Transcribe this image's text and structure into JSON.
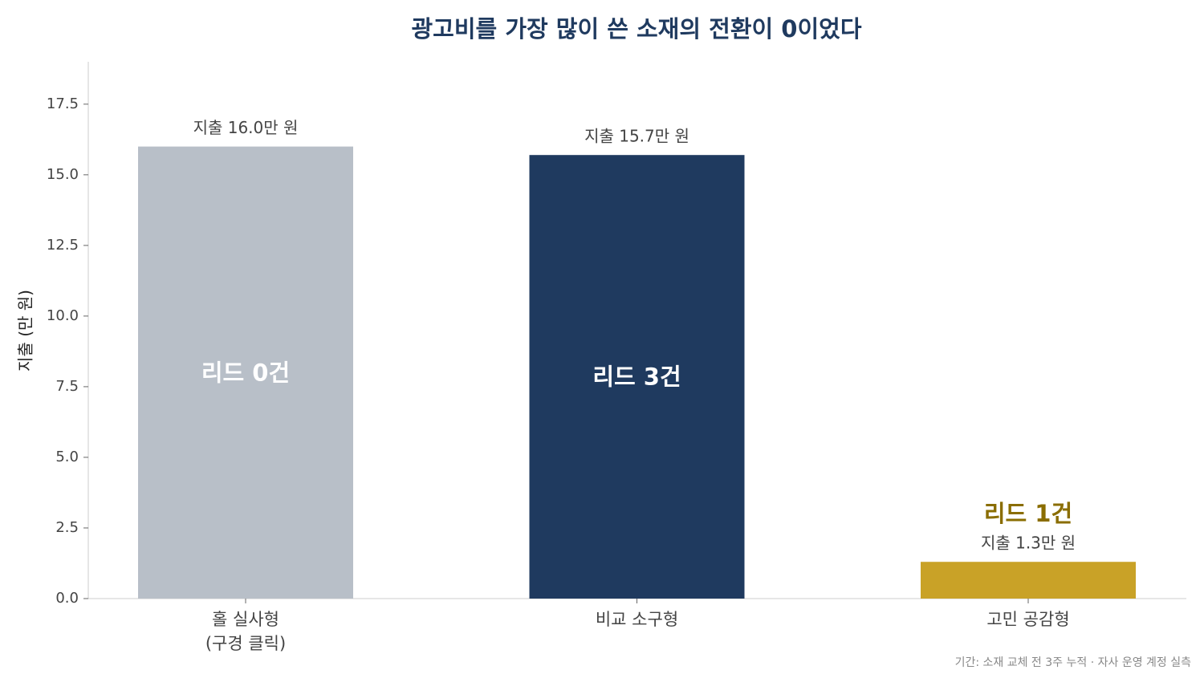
{
  "chart_data": {
    "type": "bar",
    "title": "광고비를 가장 많이 쓴 소재의 전환이 0이었다",
    "ylabel": "지출 (만 원)",
    "categories": [
      [
        "홀 실사형",
        "(구경 클릭)"
      ],
      [
        "비교 소구형"
      ],
      [
        "고민 공감형"
      ]
    ],
    "values": [
      16.0,
      15.7,
      1.3
    ],
    "value_labels": [
      "지출 16.0만 원",
      "지출 15.7만 원",
      "지출 1.3만 원"
    ],
    "colors": [
      "#b8bfc8",
      "#1f3a5f",
      "#c9a227"
    ],
    "annotations": [
      "리드 0건",
      "리드 3건",
      "리드 1건"
    ],
    "annotation_color": "#8a6d00",
    "ylim": [
      0,
      19
    ],
    "yticks": [
      {
        "value": 0,
        "label": "0.0"
      },
      2.5,
      {
        "value": 5,
        "label": "5.0"
      },
      7.5,
      {
        "value": 10,
        "label": "10.0"
      },
      12.5,
      {
        "value": 15,
        "label": "15.0"
      },
      17.5
    ],
    "grid": false,
    "footnote": "기간: 소재 교체 전 3주 누적 · 자사 운영 계정 실측"
  }
}
